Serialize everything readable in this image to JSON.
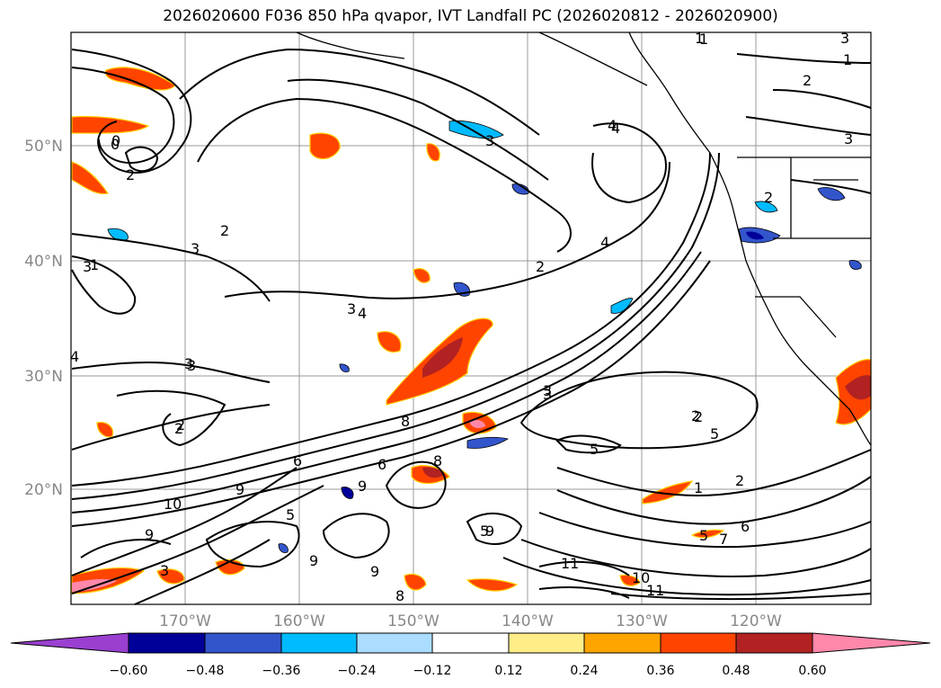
{
  "title": "2026020600 F036 850 hPa qvapor, IVT Landfall PC (2026020812 - 2026020900)",
  "lat_labels": [
    "50°N",
    "40°N",
    "30°N",
    "20°N"
  ],
  "lon_labels": [
    "170°W",
    "160°W",
    "150°W",
    "140°W",
    "130°W",
    "120°W"
  ],
  "colorbar": {
    "ticks": [
      "−0.60",
      "−0.48",
      "−0.36",
      "−0.24",
      "−0.12",
      "0.12",
      "0.24",
      "0.36",
      "0.48",
      "0.60"
    ],
    "colors": {
      "under": "#9a3fd0",
      "bins": [
        "#000099",
        "#3355cc",
        "#00bbff",
        "#aaddff",
        "#ffffff",
        "#ffee88",
        "#ffa500",
        "#ff4400",
        "#b22222"
      ],
      "over": "#ff88aa"
    }
  },
  "contour_labels": [
    "1",
    "0",
    "2",
    "3",
    "4",
    "3",
    "2",
    "3",
    "4",
    "3",
    "1",
    "2",
    "3",
    "4",
    "4",
    "3",
    "3",
    "8",
    "10",
    "9",
    "6",
    "5",
    "9",
    "9",
    "8",
    "6",
    "2",
    "5",
    "3",
    "9",
    "9",
    "8",
    "10",
    "11",
    "11",
    "9",
    "7",
    "6",
    "5",
    "2",
    "1",
    "3",
    "2",
    "4",
    "5",
    "2",
    "5",
    "2",
    "1",
    "2",
    "3",
    "3",
    "2",
    "1",
    "0"
  ]
}
